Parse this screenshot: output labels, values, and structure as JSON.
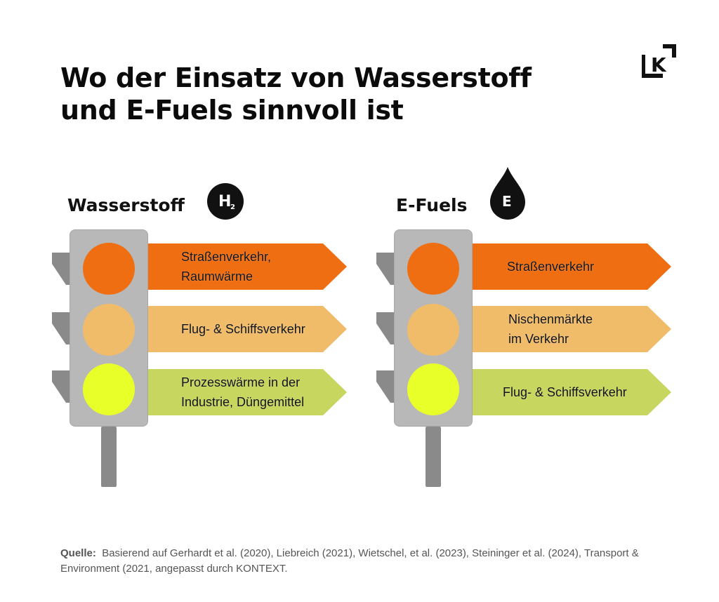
{
  "title": {
    "line1": "Wo der Einsatz von Wasserstoff",
    "line2": "und E-Fuels sinnvoll ist"
  },
  "logo": {
    "letter": "K",
    "icon": "kontext-logo-icon"
  },
  "panels": [
    {
      "label": "Wasserstoff",
      "badge": {
        "main": "H",
        "sub": "2",
        "icon": "h2-circle-icon"
      },
      "signs": [
        {
          "lines": [
            "Straßenverkehr,",
            "Raumwärme"
          ],
          "color": "#f06e12"
        },
        {
          "lines": [
            "Flug- & Schiffsverkehr"
          ],
          "color": "#f0bc6a"
        },
        {
          "lines": [
            "Prozesswärme in der",
            "Industrie, Düngemittel"
          ],
          "color": "#c6d65e"
        }
      ]
    },
    {
      "label": "E-Fuels",
      "badge": {
        "main": "E",
        "icon": "fuel-drop-icon"
      },
      "signs": [
        {
          "lines": [
            "Straßenverkehr"
          ],
          "color": "#f06e12"
        },
        {
          "lines": [
            "Nischenmärkte",
            "im Verkehr"
          ],
          "color": "#f0bc6a"
        },
        {
          "lines": [
            "Flug- & Schiffsverkehr"
          ],
          "color": "#c6d65e"
        }
      ]
    }
  ],
  "lamps": {
    "red": "#f06e12",
    "amber": "#f0bc6a",
    "green": "#e9ff2a",
    "housing": "#b8b8b8",
    "fin": "#8a8a8a"
  },
  "source": {
    "label": "Quelle:",
    "text": "Basierend auf Gerhardt et al. (2020), Liebreich (2021), Wietschel, et al. (2023), Steininger et al. (2024), Transport & Environment (2021, angepasst durch KONTEXT."
  }
}
